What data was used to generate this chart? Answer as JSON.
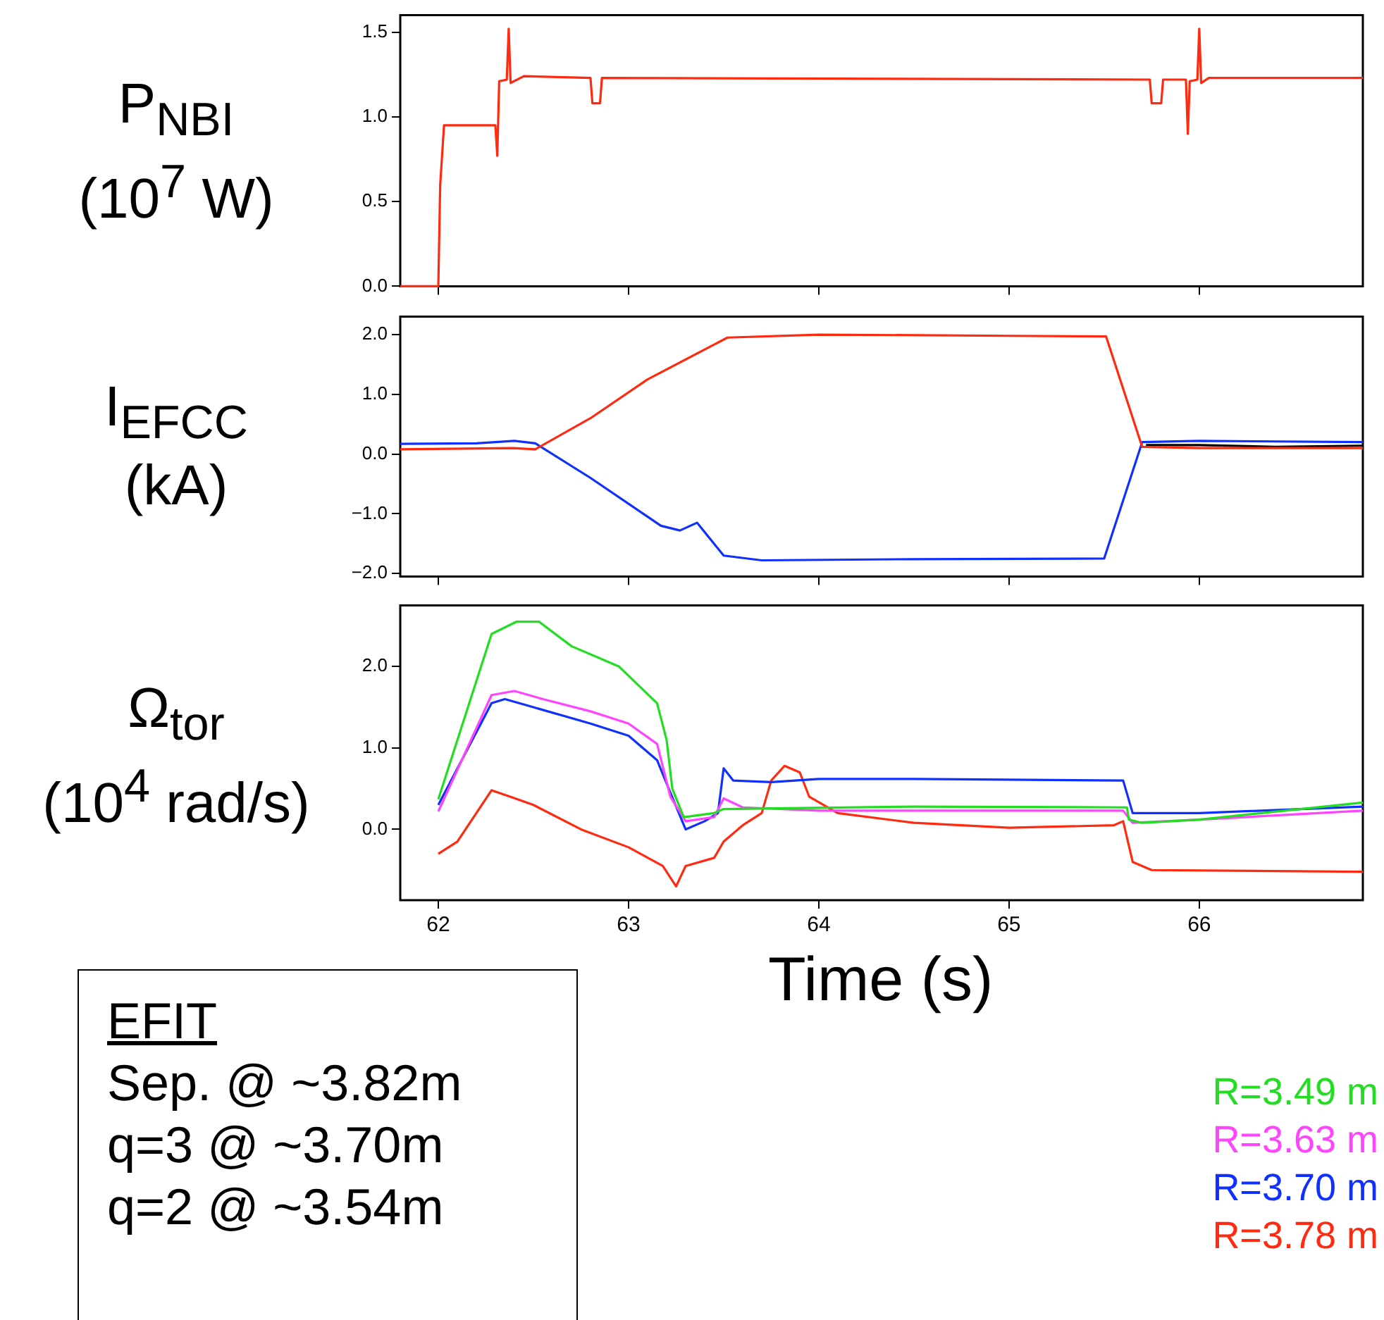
{
  "chart_data": [
    {
      "type": "line",
      "ylabel": "P$_{NBI}$ (10$^{7}$ W)",
      "xlim": [
        61.8,
        66.86
      ],
      "xticks": [
        62,
        63,
        64,
        65,
        66
      ],
      "ylim": [
        0,
        1.6
      ],
      "yticks": [
        {
          "value": 0,
          "label": "0.0"
        },
        {
          "value": 0.5,
          "label": "0.5"
        },
        {
          "value": 1,
          "label": "1.0"
        },
        {
          "value": 1.5,
          "label": "1.5"
        }
      ],
      "tick_labels": "y",
      "grid": false,
      "legend": false,
      "series": [
        {
          "color": "#ff2a10",
          "x": [
            61.8,
            62.0,
            62.01,
            62.03,
            62.3,
            62.31,
            62.32,
            62.36,
            62.37,
            62.38,
            62.45,
            62.8,
            62.81,
            62.85,
            62.86,
            65.74,
            65.75,
            65.8,
            65.81,
            65.93,
            65.94,
            65.95,
            65.99,
            66.0,
            66.01,
            66.05,
            66.86
          ],
          "values": [
            0,
            0,
            0.6,
            0.95,
            0.95,
            0.77,
            1.21,
            1.22,
            1.52,
            1.2,
            1.24,
            1.23,
            1.08,
            1.08,
            1.23,
            1.22,
            1.08,
            1.08,
            1.22,
            1.22,
            0.9,
            1.21,
            1.22,
            1.52,
            1.2,
            1.23,
            1.23
          ]
        }
      ]
    },
    {
      "type": "line",
      "ylabel": "I$_{EFCC}$ (kA)",
      "xlim": [
        61.8,
        66.86
      ],
      "xticks": [
        62,
        63,
        64,
        65,
        66
      ],
      "ylim": [
        -2.05,
        2.3
      ],
      "yticks": [
        {
          "value": -2,
          "label": "−2.0"
        },
        {
          "value": -1,
          "label": "−1.0"
        },
        {
          "value": 0,
          "label": "0.0"
        },
        {
          "value": 1,
          "label": "1.0"
        },
        {
          "value": 2,
          "label": "2.0"
        }
      ],
      "tick_labels": "y",
      "grid": false,
      "legend": false,
      "series": [
        {
          "color": "#ff2a10",
          "x": [
            61.8,
            62.39,
            62.51,
            62.8,
            63.1,
            63.52,
            64.0,
            65.0,
            65.51,
            65.7,
            66.0,
            66.86
          ],
          "values": [
            0.08,
            0.1,
            0.08,
            0.6,
            1.25,
            1.95,
            2.0,
            1.98,
            1.97,
            0.12,
            0.1,
            0.1
          ]
        },
        {
          "color": "#1030ff",
          "x": [
            61.8,
            62.2,
            62.4,
            62.51,
            62.8,
            63.17,
            63.27,
            63.36,
            63.5,
            63.7,
            64.5,
            65.5,
            65.7,
            66.0,
            66.86
          ],
          "values": [
            0.17,
            0.18,
            0.22,
            0.18,
            -0.4,
            -1.2,
            -1.28,
            -1.15,
            -1.7,
            -1.78,
            -1.76,
            -1.75,
            0.2,
            0.22,
            0.2
          ]
        },
        {
          "color": "#000000",
          "x": [
            65.72,
            66.0,
            66.4,
            66.86
          ],
          "values": [
            0.15,
            0.15,
            0.12,
            0.14
          ]
        }
      ]
    },
    {
      "type": "line",
      "ylabel": "Ω$_{tor}$ (10$^{4}$ rad/s)",
      "xlabel": "Time (s)",
      "xlim": [
        61.8,
        66.86
      ],
      "xticks": [
        62,
        63,
        64,
        65,
        66
      ],
      "ylim": [
        -0.87,
        2.75
      ],
      "yticks": [
        {
          "value": 0,
          "label": "0.0"
        },
        {
          "value": 1,
          "label": "1.0"
        },
        {
          "value": 2,
          "label": "2.0"
        }
      ],
      "grid": false,
      "legend": "bottom right",
      "annotations": [
        "EFIT",
        "Sep. @ ~3.82m",
        "q=3 @ ~3.70m",
        "q=2 @ ~3.54m"
      ],
      "series": [
        {
          "name": "R=3.49 m",
          "color": "#22dd22",
          "x": [
            62.0,
            62.28,
            62.41,
            62.53,
            62.7,
            62.95,
            63.15,
            63.2,
            63.23,
            63.29,
            63.45,
            63.5,
            64.5,
            65.62,
            65.63,
            65.7,
            66.0,
            66.86
          ],
          "values": [
            0.37,
            2.4,
            2.55,
            2.55,
            2.25,
            2.0,
            1.55,
            1.1,
            0.5,
            0.15,
            0.2,
            0.25,
            0.28,
            0.27,
            0.12,
            0.08,
            0.12,
            0.33
          ]
        },
        {
          "name": "R=3.63 m",
          "color": "#ff44ff",
          "x": [
            62.0,
            62.28,
            62.4,
            62.55,
            62.8,
            63.0,
            63.15,
            63.22,
            63.3,
            63.45,
            63.5,
            63.6,
            64.0,
            65.6,
            65.65,
            66.0,
            66.86
          ],
          "values": [
            0.22,
            1.65,
            1.7,
            1.6,
            1.45,
            1.3,
            1.05,
            0.4,
            0.1,
            0.15,
            0.38,
            0.27,
            0.23,
            0.23,
            0.08,
            0.12,
            0.23
          ]
        },
        {
          "name": "R=3.70 m",
          "color": "#1030ff",
          "x": [
            62.0,
            62.28,
            62.35,
            62.5,
            62.8,
            63.0,
            63.15,
            63.22,
            63.3,
            63.4,
            63.47,
            63.5,
            63.55,
            63.75,
            64.0,
            64.5,
            65.6,
            65.65,
            66.0,
            66.86
          ],
          "values": [
            0.3,
            1.55,
            1.6,
            1.5,
            1.3,
            1.15,
            0.85,
            0.45,
            0.0,
            0.1,
            0.2,
            0.75,
            0.6,
            0.58,
            0.62,
            0.62,
            0.6,
            0.2,
            0.2,
            0.28
          ]
        },
        {
          "name": "R=3.78 m",
          "color": "#ff2a10",
          "x": [
            62.0,
            62.1,
            62.28,
            62.38,
            62.5,
            62.75,
            63.0,
            63.18,
            63.25,
            63.3,
            63.45,
            63.5,
            63.6,
            63.7,
            63.75,
            63.82,
            63.9,
            63.95,
            64.1,
            64.5,
            65.0,
            65.55,
            65.6,
            65.65,
            65.75,
            66.86
          ],
          "values": [
            -0.3,
            -0.15,
            0.48,
            0.4,
            0.3,
            0.0,
            -0.22,
            -0.45,
            -0.7,
            -0.45,
            -0.35,
            -0.15,
            0.05,
            0.2,
            0.6,
            0.78,
            0.7,
            0.4,
            0.2,
            0.08,
            0.02,
            0.05,
            0.1,
            -0.4,
            -0.5,
            -0.52
          ]
        }
      ]
    }
  ]
}
